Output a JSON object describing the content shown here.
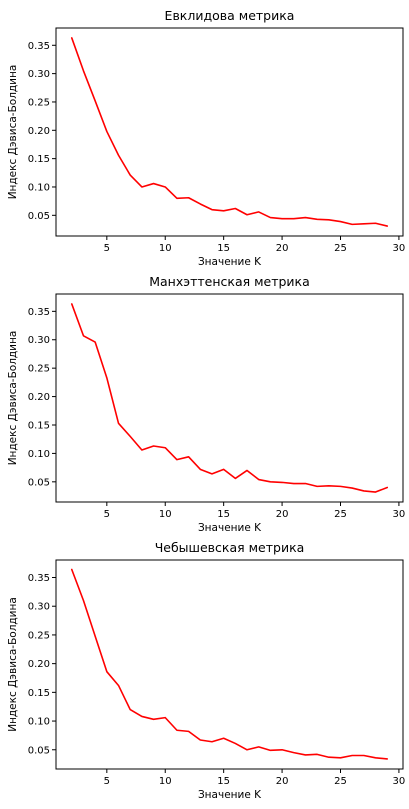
{
  "chart_data": [
    {
      "type": "line",
      "title": "Евклидова метрика",
      "xlabel": "Значение K",
      "ylabel": "Индекс Дэвиса-Болдина",
      "xlim": [
        0.65,
        30.35
      ],
      "ylim": [
        0.0135,
        0.3805
      ],
      "xticks": [
        5,
        10,
        15,
        20,
        25,
        30
      ],
      "yticks": [
        0.05,
        0.1,
        0.15,
        0.2,
        0.25,
        0.3,
        0.35
      ],
      "ytick_labels": [
        "0.05",
        "0.10",
        "0.15",
        "0.20",
        "0.25",
        "0.30",
        "0.35"
      ],
      "color": "#ff0000",
      "grid": false,
      "x": [
        2,
        3,
        4,
        5,
        6,
        7,
        8,
        9,
        10,
        11,
        12,
        13,
        14,
        15,
        16,
        17,
        18,
        19,
        20,
        21,
        22,
        23,
        24,
        25,
        26,
        27,
        28,
        29
      ],
      "y": [
        0.363,
        0.305,
        0.252,
        0.198,
        0.156,
        0.121,
        0.1,
        0.106,
        0.1,
        0.08,
        0.081,
        0.07,
        0.06,
        0.058,
        0.062,
        0.051,
        0.056,
        0.046,
        0.044,
        0.044,
        0.046,
        0.043,
        0.042,
        0.039,
        0.034,
        0.035,
        0.036,
        0.031
      ]
    },
    {
      "type": "line",
      "title": "Манхэттенская метрика",
      "xlabel": "Значение K",
      "ylabel": "Индекс Дэвиса-Болдина",
      "xlim": [
        0.65,
        30.35
      ],
      "ylim": [
        0.0145,
        0.3805
      ],
      "xticks": [
        5,
        10,
        15,
        20,
        25,
        30
      ],
      "yticks": [
        0.05,
        0.1,
        0.15,
        0.2,
        0.25,
        0.3,
        0.35
      ],
      "ytick_labels": [
        "0.05",
        "0.10",
        "0.15",
        "0.20",
        "0.25",
        "0.30",
        "0.35"
      ],
      "color": "#ff0000",
      "grid": false,
      "x": [
        2,
        3,
        4,
        5,
        6,
        7,
        8,
        9,
        10,
        11,
        12,
        13,
        14,
        15,
        16,
        17,
        18,
        19,
        20,
        21,
        22,
        23,
        24,
        25,
        26,
        27,
        28,
        29
      ],
      "y": [
        0.363,
        0.307,
        0.296,
        0.233,
        0.153,
        0.13,
        0.106,
        0.113,
        0.11,
        0.089,
        0.094,
        0.072,
        0.064,
        0.072,
        0.056,
        0.07,
        0.054,
        0.05,
        0.049,
        0.047,
        0.047,
        0.042,
        0.043,
        0.042,
        0.039,
        0.034,
        0.032,
        0.04
      ]
    },
    {
      "type": "line",
      "title": "Чебышевская метрика",
      "xlabel": "Значение K",
      "ylabel": "Индекс Дэвиса-Болдина",
      "xlim": [
        0.65,
        30.35
      ],
      "ylim": [
        0.0165,
        0.3805
      ],
      "xticks": [
        5,
        10,
        15,
        20,
        25,
        30
      ],
      "yticks": [
        0.05,
        0.1,
        0.15,
        0.2,
        0.25,
        0.3,
        0.35
      ],
      "ytick_labels": [
        "0.05",
        "0.10",
        "0.15",
        "0.20",
        "0.25",
        "0.30",
        "0.35"
      ],
      "color": "#ff0000",
      "grid": false,
      "x": [
        2,
        3,
        4,
        5,
        6,
        7,
        8,
        9,
        10,
        11,
        12,
        13,
        14,
        15,
        16,
        17,
        18,
        19,
        20,
        21,
        22,
        23,
        24,
        25,
        26,
        27,
        28,
        29
      ],
      "y": [
        0.364,
        0.31,
        0.248,
        0.186,
        0.162,
        0.12,
        0.108,
        0.103,
        0.106,
        0.084,
        0.082,
        0.067,
        0.064,
        0.07,
        0.061,
        0.05,
        0.055,
        0.049,
        0.05,
        0.045,
        0.041,
        0.042,
        0.037,
        0.036,
        0.04,
        0.04,
        0.036,
        0.034
      ]
    }
  ]
}
